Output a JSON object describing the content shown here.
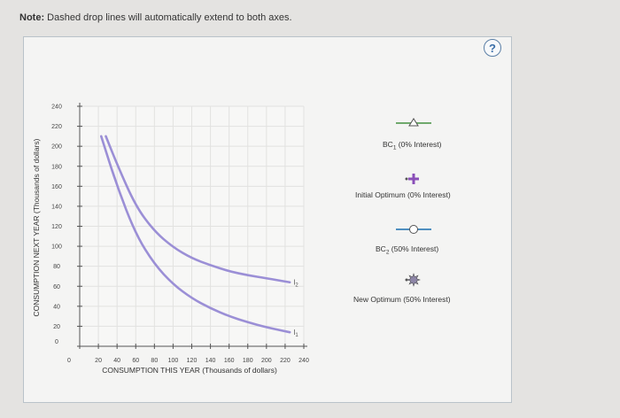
{
  "note": {
    "prefix": "Note:",
    "text": " Dashed drop lines will automatically extend to both axes."
  },
  "help": {
    "label": "?"
  },
  "chart_data": {
    "type": "line",
    "xlabel": "CONSUMPTION THIS YEAR (Thousands of dollars)",
    "ylabel": "CONSUMPTION NEXT YEAR (Thousands of dollars)",
    "xlim": [
      0,
      240
    ],
    "ylim": [
      0,
      240
    ],
    "xticks": [
      "0",
      "20",
      "40",
      "60",
      "80",
      "100",
      "120",
      "140",
      "160",
      "180",
      "200",
      "220",
      "240"
    ],
    "yticks": [
      "0",
      "20",
      "40",
      "60",
      "80",
      "100",
      "120",
      "140",
      "160",
      "180",
      "200",
      "220",
      "240"
    ],
    "grid": true,
    "series": [
      {
        "name": "I2",
        "color": "#9b8fd6",
        "x": [
          28,
          40,
          60,
          80,
          100,
          120,
          140,
          160,
          180,
          200,
          225
        ],
        "y": [
          210,
          182,
          140,
          115,
          99,
          88,
          81,
          75,
          71,
          68,
          64
        ]
      },
      {
        "name": "I1",
        "color": "#9b8fd6",
        "x": [
          23,
          40,
          60,
          80,
          100,
          120,
          140,
          160,
          180,
          200,
          225
        ],
        "y": [
          210,
          160,
          112,
          82,
          62,
          48,
          38,
          30,
          24,
          19,
          14
        ]
      }
    ]
  },
  "legend": {
    "items": [
      {
        "label_main": "BC",
        "label_sub": "1",
        "label_rest": " (0% Interest)",
        "icon": "triangle-line-icon",
        "color": "#6fa96c"
      },
      {
        "label_main": "Initial Optimum (0% Interest)",
        "label_sub": "",
        "label_rest": "",
        "icon": "plus-dot-icon",
        "color": "#8a4fb8"
      },
      {
        "label_main": "BC",
        "label_sub": "2",
        "label_rest": " (50% Interest)",
        "icon": "circle-line-icon",
        "color": "#4f8fc0"
      },
      {
        "label_main": "New Optimum (50% Interest)",
        "label_sub": "",
        "label_rest": "",
        "icon": "star-dot-icon",
        "color": "#7a6a9a"
      }
    ]
  }
}
